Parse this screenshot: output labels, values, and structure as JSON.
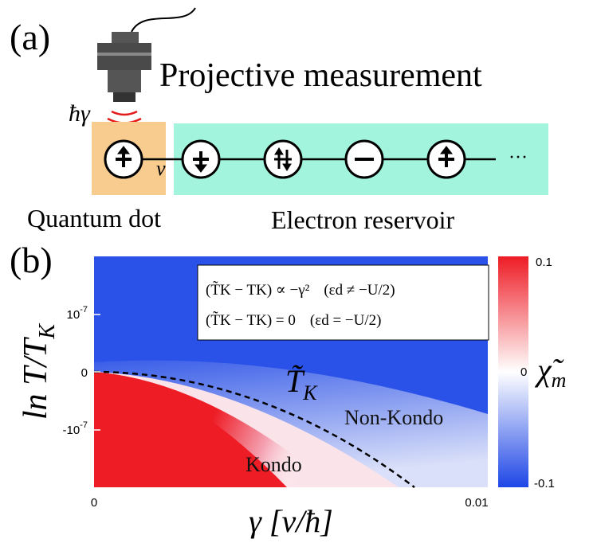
{
  "panel_a": {
    "label": "(a)",
    "measurement": "Projective measurement",
    "coupling": "ħγ",
    "hopping": "v",
    "ellipsis": "···",
    "dot_label": "Quantum dot",
    "reservoir_label": "Electron reservoir"
  },
  "panel_b": {
    "label": "(b)",
    "y_label": {
      "main": "ln T/T",
      "sub": "K"
    },
    "x_label": "γ [v/ħ]",
    "y_ticks": [
      {
        "base": "10",
        "exp": "-7"
      },
      {
        "base": "0",
        "exp": ""
      },
      {
        "base": "-10",
        "exp": "-7"
      }
    ],
    "x_ticks": [
      "0",
      "0.01"
    ],
    "colorbar_ticks": [
      "0.1",
      "0",
      "-0.1"
    ],
    "colorbar_label": {
      "main": "χ̃",
      "sub": "m"
    },
    "curve_label": {
      "main": "T̃",
      "sub": "K"
    },
    "region_non_kondo": "Non-Kondo",
    "region_kondo": "Kondo",
    "formula_1": {
      "lhs": "(T̃K − TK) ∝ −γ²",
      "cond": "(εd ≠ −U/2)"
    },
    "formula_2": {
      "lhs": "(T̃K − TK) = 0",
      "cond": "(εd = −U/2)"
    }
  }
}
